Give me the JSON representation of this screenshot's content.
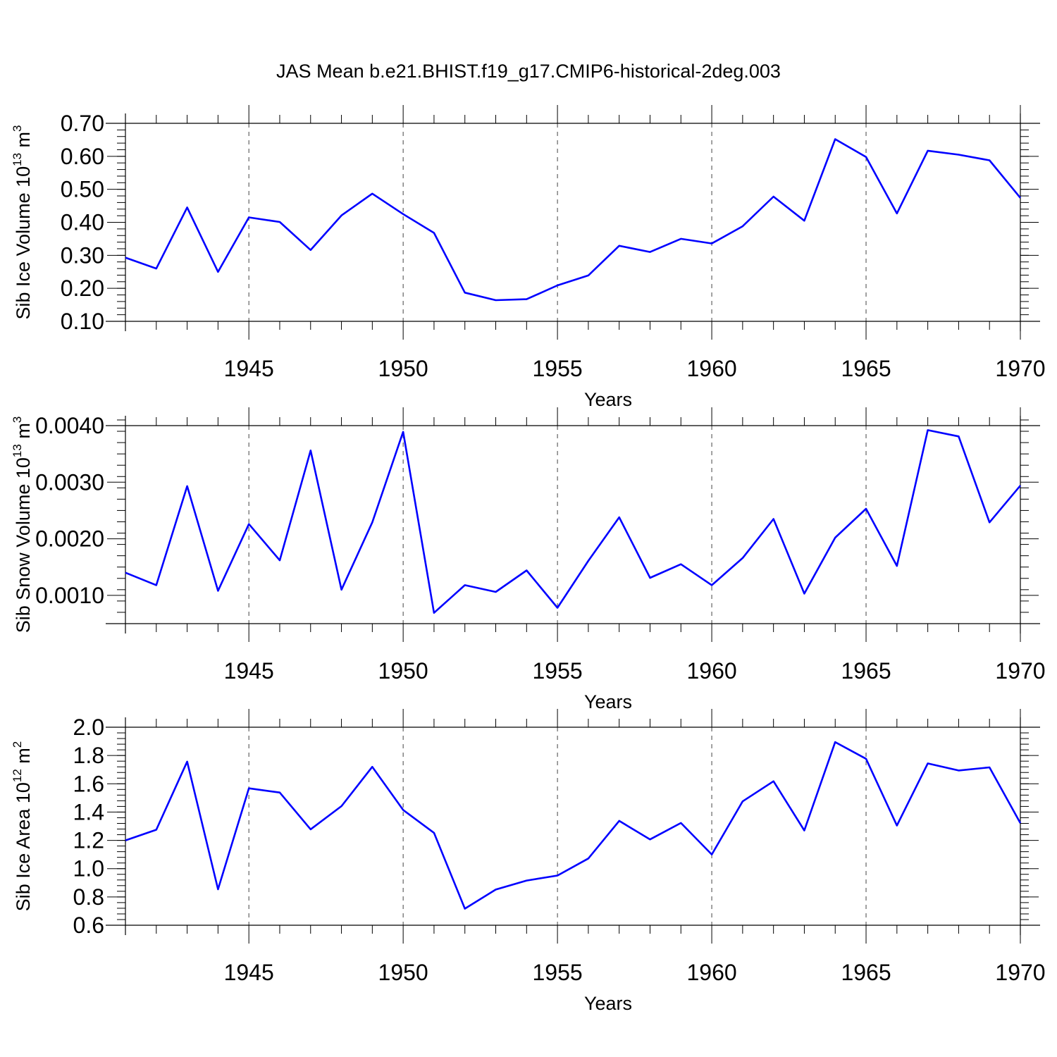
{
  "figure": {
    "title": "JAS Mean b.e21.BHIST.f19_g17.CMIP6-historical-2deg.003"
  },
  "chart_data": [
    {
      "type": "line",
      "xlabel": "Years",
      "ylabel": "Sib Ice Volume 10",
      "ylabel_exp": "13",
      "ylabel_unit": " m",
      "ylabel_unit_exp": "3",
      "xlim": [
        1941,
        1970
      ],
      "ylim": [
        0.1,
        0.7
      ],
      "xticks": [
        1945,
        1950,
        1955,
        1960,
        1965,
        1970
      ],
      "yticks": [
        0.1,
        0.2,
        0.3,
        0.4,
        0.5,
        0.6,
        0.7
      ],
      "ytick_labels": [
        "0.10",
        "0.20",
        "0.30",
        "0.40",
        "0.50",
        "0.60",
        "0.70"
      ],
      "grid": "vertical dashed at major x ticks",
      "line_color": "#0000ff",
      "x": [
        1941,
        1942,
        1943,
        1944,
        1945,
        1946,
        1947,
        1948,
        1949,
        1950,
        1951,
        1952,
        1953,
        1954,
        1955,
        1956,
        1957,
        1958,
        1959,
        1960,
        1961,
        1962,
        1963,
        1964,
        1965,
        1966,
        1967,
        1968,
        1969,
        1970
      ],
      "values": [
        0.293,
        0.26,
        0.445,
        0.25,
        0.415,
        0.401,
        0.316,
        0.421,
        0.487,
        0.425,
        0.368,
        0.187,
        0.164,
        0.167,
        0.209,
        0.239,
        0.329,
        0.31,
        0.35,
        0.336,
        0.388,
        0.478,
        0.405,
        0.652,
        0.598,
        0.427,
        0.617,
        0.605,
        0.588,
        0.474
      ]
    },
    {
      "type": "line",
      "xlabel": "Years",
      "ylabel": "Sib Snow Volume 10",
      "ylabel_exp": "13",
      "ylabel_unit": " m",
      "ylabel_unit_exp": "3",
      "xlim": [
        1941,
        1970
      ],
      "ylim": [
        0.0005,
        0.004
      ],
      "xticks": [
        1945,
        1950,
        1955,
        1960,
        1965,
        1970
      ],
      "yticks": [
        0.001,
        0.002,
        0.003,
        0.004
      ],
      "ytick_labels": [
        "0.0010",
        "0.0020",
        "0.0030",
        "0.0040"
      ],
      "grid": "vertical dashed at major x ticks",
      "line_color": "#0000ff",
      "x": [
        1941,
        1942,
        1943,
        1944,
        1945,
        1946,
        1947,
        1948,
        1949,
        1950,
        1951,
        1952,
        1953,
        1954,
        1955,
        1956,
        1957,
        1958,
        1959,
        1960,
        1961,
        1962,
        1963,
        1964,
        1965,
        1966,
        1967,
        1968,
        1969,
        1970
      ],
      "values": [
        0.0014,
        0.00118,
        0.00293,
        0.00108,
        0.00226,
        0.00162,
        0.00356,
        0.0011,
        0.00229,
        0.00389,
        0.00069,
        0.00118,
        0.00106,
        0.00144,
        0.00078,
        0.00161,
        0.00238,
        0.00131,
        0.00155,
        0.00118,
        0.00166,
        0.00235,
        0.00103,
        0.00202,
        0.00253,
        0.00152,
        0.00392,
        0.00381,
        0.00229,
        0.00294
      ]
    },
    {
      "type": "line",
      "xlabel": "Years",
      "ylabel": "Sib Ice Area 10",
      "ylabel_exp": "12",
      "ylabel_unit": " m",
      "ylabel_unit_exp": "2",
      "xlim": [
        1941,
        1970
      ],
      "ylim": [
        0.6,
        2.0
      ],
      "xticks": [
        1945,
        1950,
        1955,
        1960,
        1965,
        1970
      ],
      "yticks": [
        0.6,
        0.8,
        1.0,
        1.2,
        1.4,
        1.6,
        1.8,
        2.0
      ],
      "ytick_labels": [
        "0.6",
        "0.8",
        "1.0",
        "1.2",
        "1.4",
        "1.6",
        "1.8",
        "2.0"
      ],
      "grid": "vertical dashed at major x ticks",
      "line_color": "#0000ff",
      "x": [
        1941,
        1942,
        1943,
        1944,
        1945,
        1946,
        1947,
        1948,
        1949,
        1950,
        1951,
        1952,
        1953,
        1954,
        1955,
        1956,
        1957,
        1958,
        1959,
        1960,
        1961,
        1962,
        1963,
        1964,
        1965,
        1966,
        1967,
        1968,
        1969,
        1970
      ],
      "values": [
        1.2,
        1.275,
        1.757,
        0.854,
        1.568,
        1.538,
        1.278,
        1.442,
        1.72,
        1.415,
        1.253,
        0.717,
        0.852,
        0.916,
        0.951,
        1.072,
        1.338,
        1.207,
        1.323,
        1.1,
        1.476,
        1.618,
        1.27,
        1.895,
        1.777,
        1.305,
        1.744,
        1.694,
        1.716,
        1.322
      ]
    }
  ]
}
